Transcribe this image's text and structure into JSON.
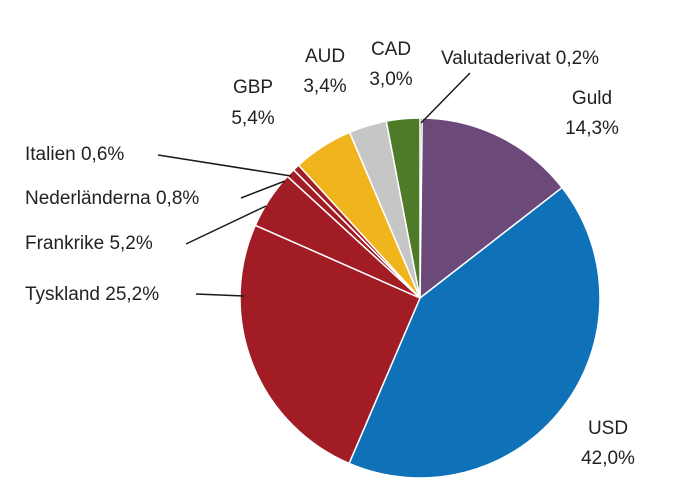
{
  "chart_data": {
    "type": "pie",
    "title": "",
    "slices": [
      {
        "label": "Valutaderivat",
        "value_text": "0,2%",
        "value": 0.2,
        "color": "#4f6228"
      },
      {
        "label": "Guld",
        "value_text": "14,3%",
        "value": 14.3,
        "color": "#6b4a7a"
      },
      {
        "label": "USD",
        "value_text": "42,0%",
        "value": 42.0,
        "color": "#0f72b8"
      },
      {
        "label": "Tyskland",
        "value_text": "25,2%",
        "value": 25.2,
        "color": "#a11c24"
      },
      {
        "label": "Frankrike",
        "value_text": "5,2%",
        "value": 5.2,
        "color": "#a11c24"
      },
      {
        "label": "Nederländerna",
        "value_text": "0,8%",
        "value": 0.8,
        "color": "#a11c24"
      },
      {
        "label": "Italien",
        "value_text": "0,6%",
        "value": 0.6,
        "color": "#a11c24"
      },
      {
        "label": "GBP",
        "value_text": "5,4%",
        "value": 5.4,
        "color": "#f0b41c"
      },
      {
        "label": "AUD",
        "value_text": "3,4%",
        "value": 3.4,
        "color": "#c6c6c6"
      },
      {
        "label": "CAD",
        "value_text": "3,0%",
        "value": 3.0,
        "color": "#4f7a28"
      }
    ]
  }
}
